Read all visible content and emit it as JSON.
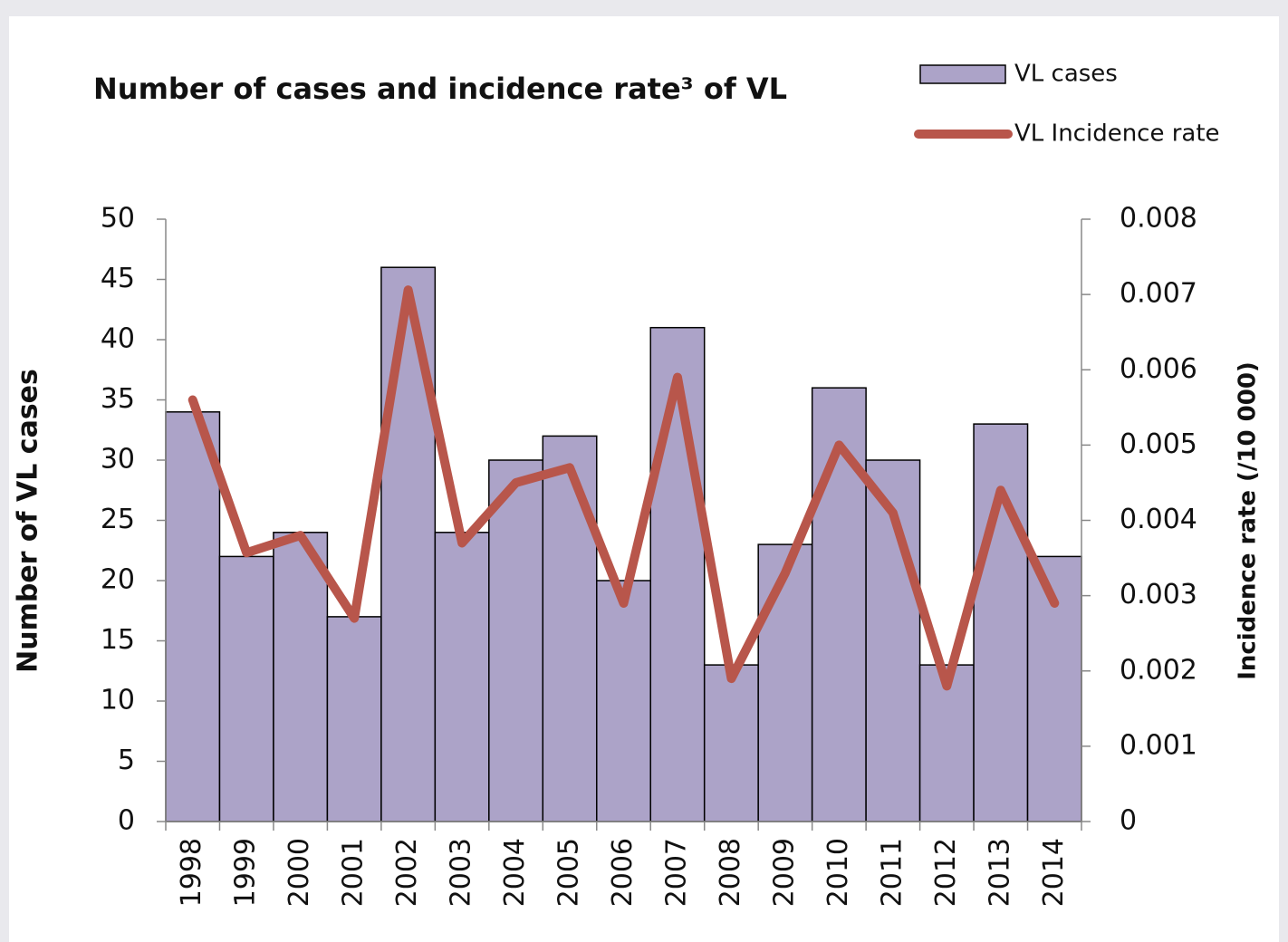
{
  "chart_data": {
    "type": "bar_line",
    "title": "Number of cases and incidence rate³ of VL",
    "y_label": "Number of VL cases",
    "y2_label": "Incidence rate (/10 000)",
    "categories": [
      "1998",
      "1999",
      "2000",
      "2001",
      "2002",
      "2003",
      "2004",
      "2005",
      "2006",
      "2007",
      "2008",
      "2009",
      "2010",
      "2011",
      "2012",
      "2013",
      "2014"
    ],
    "series": [
      {
        "name": "VL cases",
        "type": "bar",
        "color": "#aca3c8",
        "values": [
          34,
          22,
          24,
          17,
          46,
          24,
          30,
          32,
          20,
          41,
          13,
          23,
          36,
          30,
          13,
          33,
          22
        ]
      },
      {
        "name": "VL Incidence rate",
        "type": "line",
        "axis": "y2",
        "color": "#b8564b",
        "values": [
          0.0056,
          0.00357,
          0.0038,
          0.0027,
          0.00706,
          0.0037,
          0.0045,
          0.0047,
          0.0029,
          0.0059,
          0.0019,
          0.0033,
          0.005,
          0.0041,
          0.0018,
          0.0044,
          0.0029
        ]
      }
    ],
    "ylim": [
      0,
      50
    ],
    "yticks": [
      0,
      5,
      10,
      15,
      20,
      25,
      30,
      35,
      40,
      45,
      50
    ],
    "y2lim": [
      0,
      0.008
    ],
    "y2ticks": [
      0,
      0.001,
      0.002,
      0.003,
      0.004,
      0.005,
      0.006,
      0.007,
      0.008
    ],
    "legend": "top-right"
  }
}
